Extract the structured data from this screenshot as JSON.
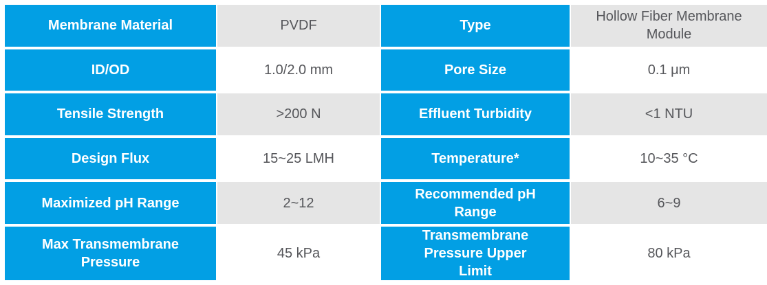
{
  "colors": {
    "header_bg": "#029fe4",
    "header_text": "#ffffff",
    "shaded_value_bg": "#e5e5e5",
    "plain_value_bg": "#ffffff",
    "value_text": "#55565a"
  },
  "table": {
    "description": "Membrane module specification table",
    "rows": [
      [
        "Membrane Material",
        "PVDF",
        "Type",
        "Hollow Fiber Membrane Module"
      ],
      [
        "ID/OD",
        "1.0/2.0 mm",
        "Pore Size",
        "0.1 μm"
      ],
      [
        "Tensile Strength",
        ">200 N",
        "Effluent Turbidity",
        "<1 NTU"
      ],
      [
        "Design Flux",
        "15~25 LMH",
        "Temperature*",
        "10~35 °C"
      ],
      [
        "Maximized pH Range",
        "2~12",
        "Recommended pH Range",
        "6~9"
      ],
      [
        "Max Transmembrane Pressure",
        "45 kPa",
        "Transmembrane Pressure Upper Limit",
        "80 kPa"
      ]
    ]
  }
}
